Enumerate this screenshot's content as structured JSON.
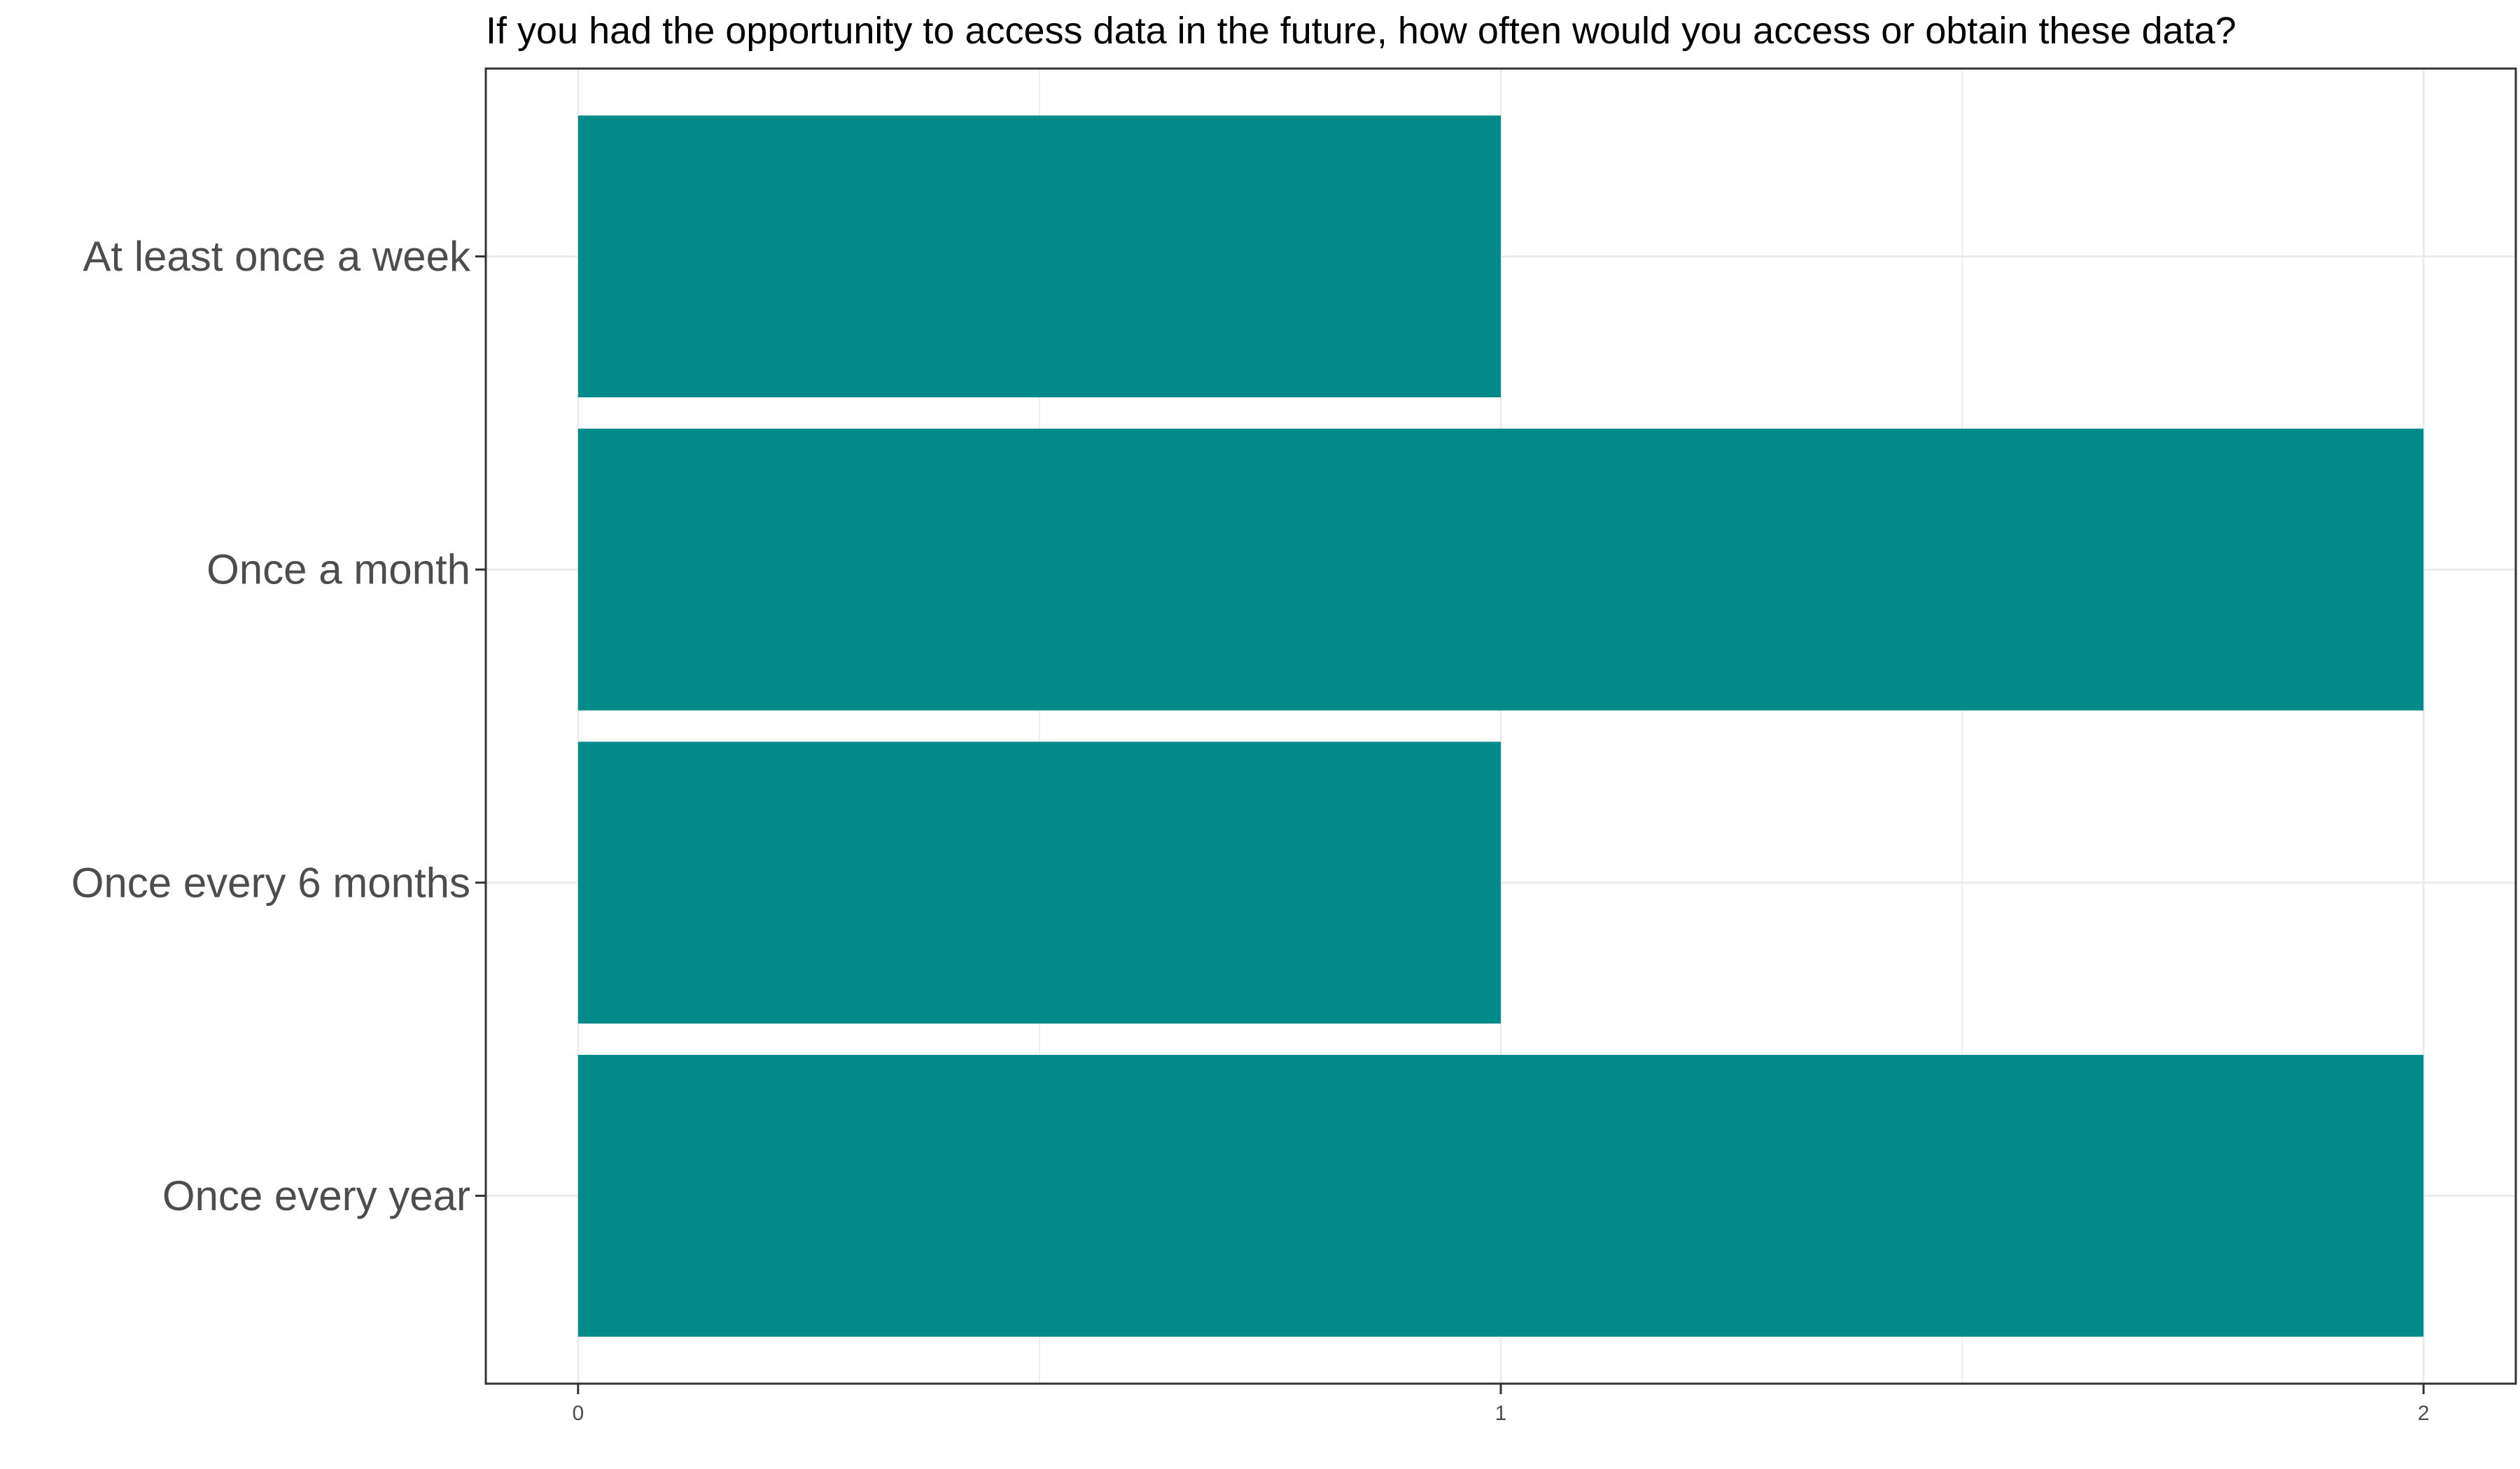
{
  "chart_data": {
    "type": "bar",
    "orientation": "horizontal",
    "title": "If you had the opportunity to access data in the future, how often would you access or obtain these data?",
    "xlabel": "",
    "ylabel": "",
    "categories": [
      "At least once a week",
      "Once a month",
      "Once every 6 months",
      "Once every year"
    ],
    "values": [
      1,
      2,
      1,
      2
    ],
    "xlim": [
      -0.1,
      2.1
    ],
    "x_ticks": [
      "0",
      "1",
      "2"
    ],
    "grid": true,
    "bar_color": "#008B8B",
    "legend": "none"
  }
}
